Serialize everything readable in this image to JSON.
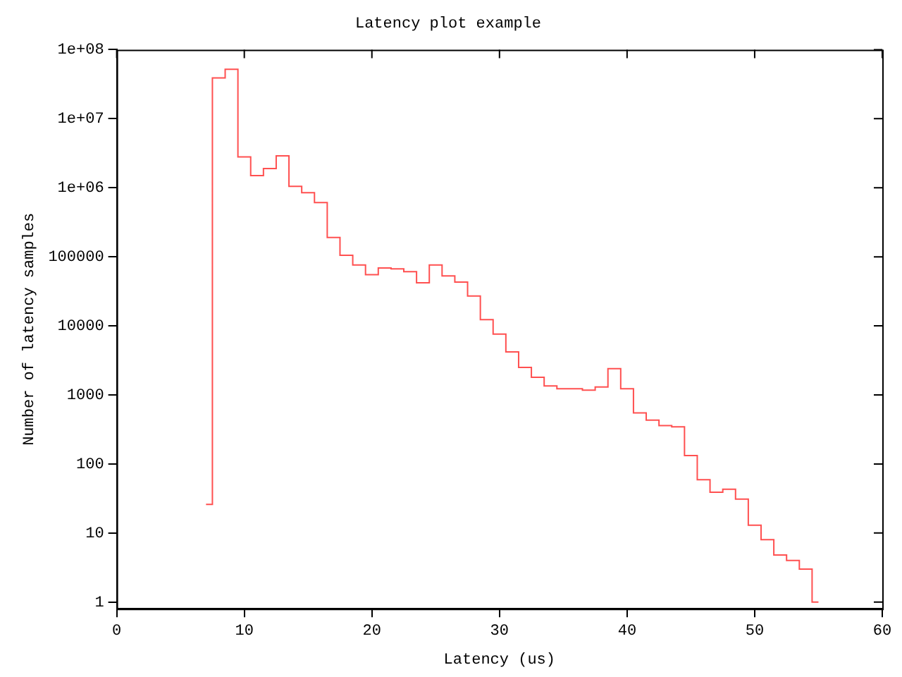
{
  "chart_data": {
    "type": "step",
    "title": "Latency plot example",
    "xlabel": "Latency (us)",
    "ylabel": "Number of latency samples",
    "x": [
      7,
      8,
      9,
      10,
      11,
      12,
      13,
      14,
      15,
      16,
      17,
      18,
      19,
      20,
      21,
      22,
      23,
      24,
      25,
      26,
      27,
      28,
      29,
      30,
      31,
      32,
      33,
      34,
      35,
      36,
      37,
      38,
      39,
      40,
      41,
      42,
      43,
      44,
      45,
      46,
      47,
      48,
      49,
      50,
      51,
      52,
      53,
      54,
      55
    ],
    "values": [
      26,
      39000000,
      52000000,
      2800000,
      1500000,
      1900000,
      2900000,
      1050000,
      850000,
      610000,
      190000,
      105000,
      76000,
      55000,
      69000,
      67000,
      61000,
      42000,
      76000,
      53000,
      43000,
      27000,
      12300,
      7600,
      4200,
      2500,
      1800,
      1350,
      1230,
      1230,
      1170,
      1300,
      2400,
      1230,
      550,
      430,
      360,
      345,
      132,
      59,
      39,
      43,
      31,
      13,
      8,
      4.8,
      4,
      3,
      1
    ],
    "color": "#ff5050",
    "log": "y",
    "grid": false,
    "legend": false,
    "xlim": [
      0,
      60
    ],
    "xticks": [
      0,
      10,
      20,
      30,
      40,
      50,
      60
    ],
    "ylim": [
      0.8,
      100000000
    ],
    "yticks": [
      1,
      10,
      100,
      1000,
      10000,
      100000,
      {
        "value": 1000000,
        "label": "1e+06"
      },
      {
        "value": 10000000,
        "label": "1e+07"
      },
      {
        "value": 100000000,
        "label": "1e+08"
      }
    ]
  }
}
